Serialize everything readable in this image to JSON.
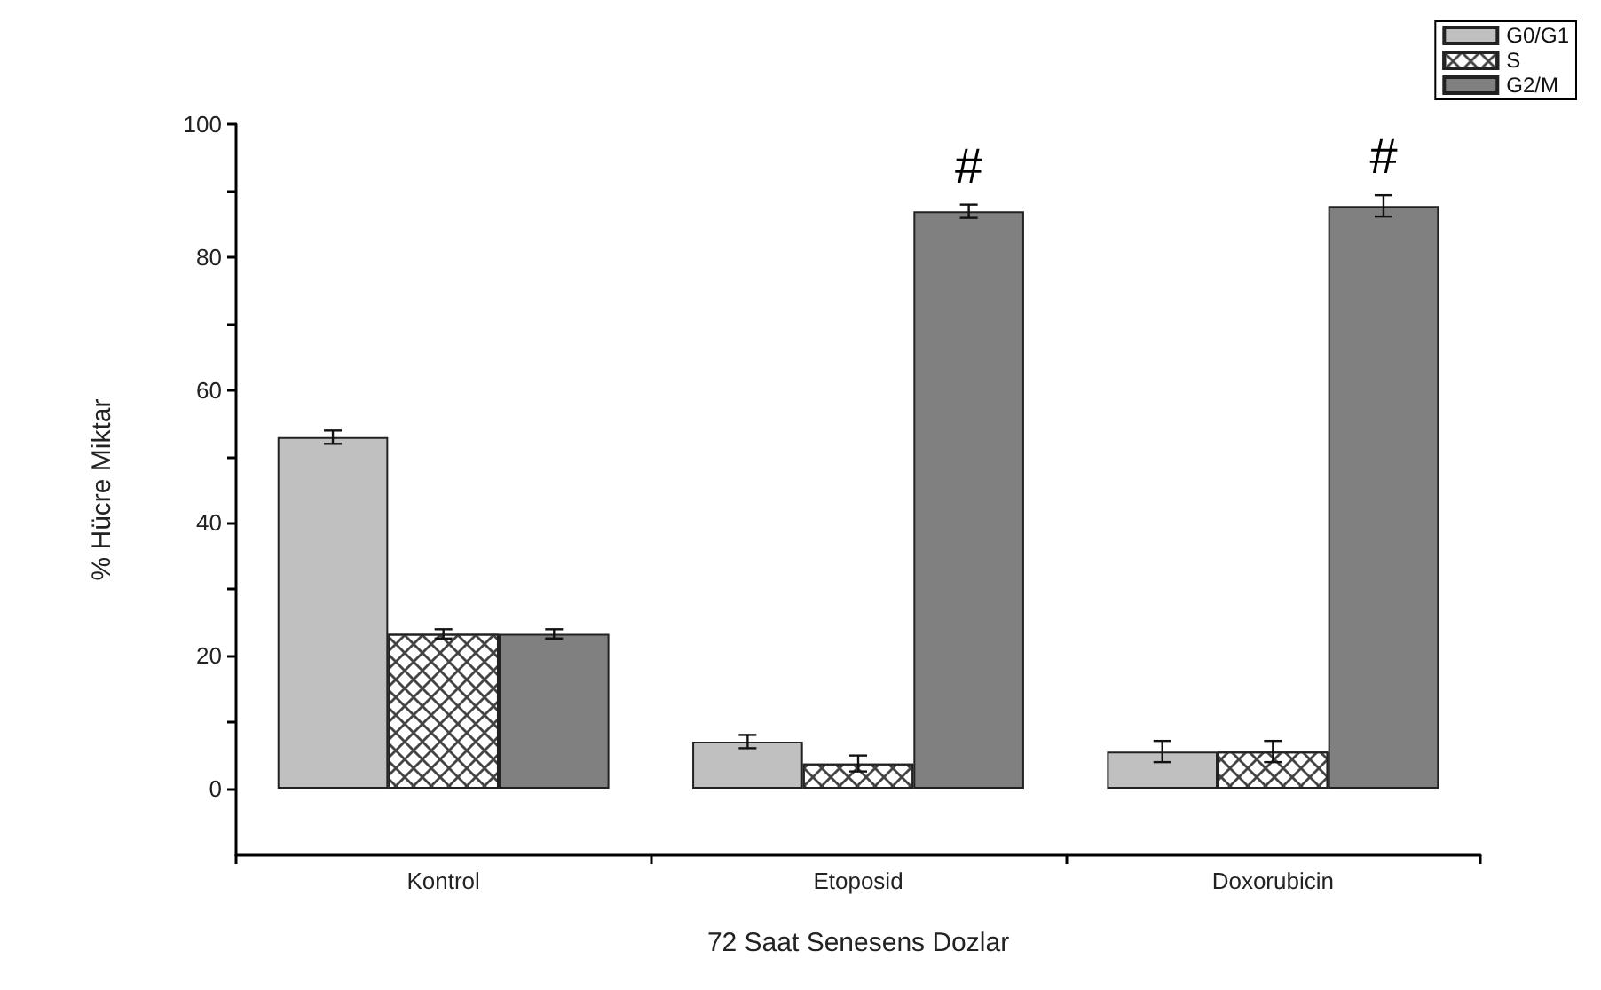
{
  "chart_data": {
    "type": "bar",
    "xlabel": "72 Saat Senesens Dozlar",
    "ylabel": "% Hücre Miktar",
    "categories": [
      "Kontrol",
      "Etoposid",
      "Doxorubicin"
    ],
    "series": [
      {
        "name": "G0/G1",
        "color": "#c0c0c0",
        "values": [
          52.9,
          7.1,
          5.6
        ],
        "errors": [
          1,
          1,
          1.6
        ]
      },
      {
        "name": "S",
        "color": "#ffffff",
        "values": [
          23.3,
          3.8,
          5.6
        ],
        "errors": [
          0.7,
          1.2,
          1.6
        ]
      },
      {
        "name": "G2/M",
        "color": "#808080",
        "values": [
          23.3,
          86.9,
          87.7
        ],
        "errors": [
          0.7,
          1,
          1.6
        ]
      }
    ],
    "ylim": [
      -10,
      100
    ],
    "yticks": [
      0,
      20,
      40,
      60,
      80,
      100
    ],
    "grid": false,
    "legend": "top right",
    "annotations": [
      "#",
      "#"
    ]
  }
}
